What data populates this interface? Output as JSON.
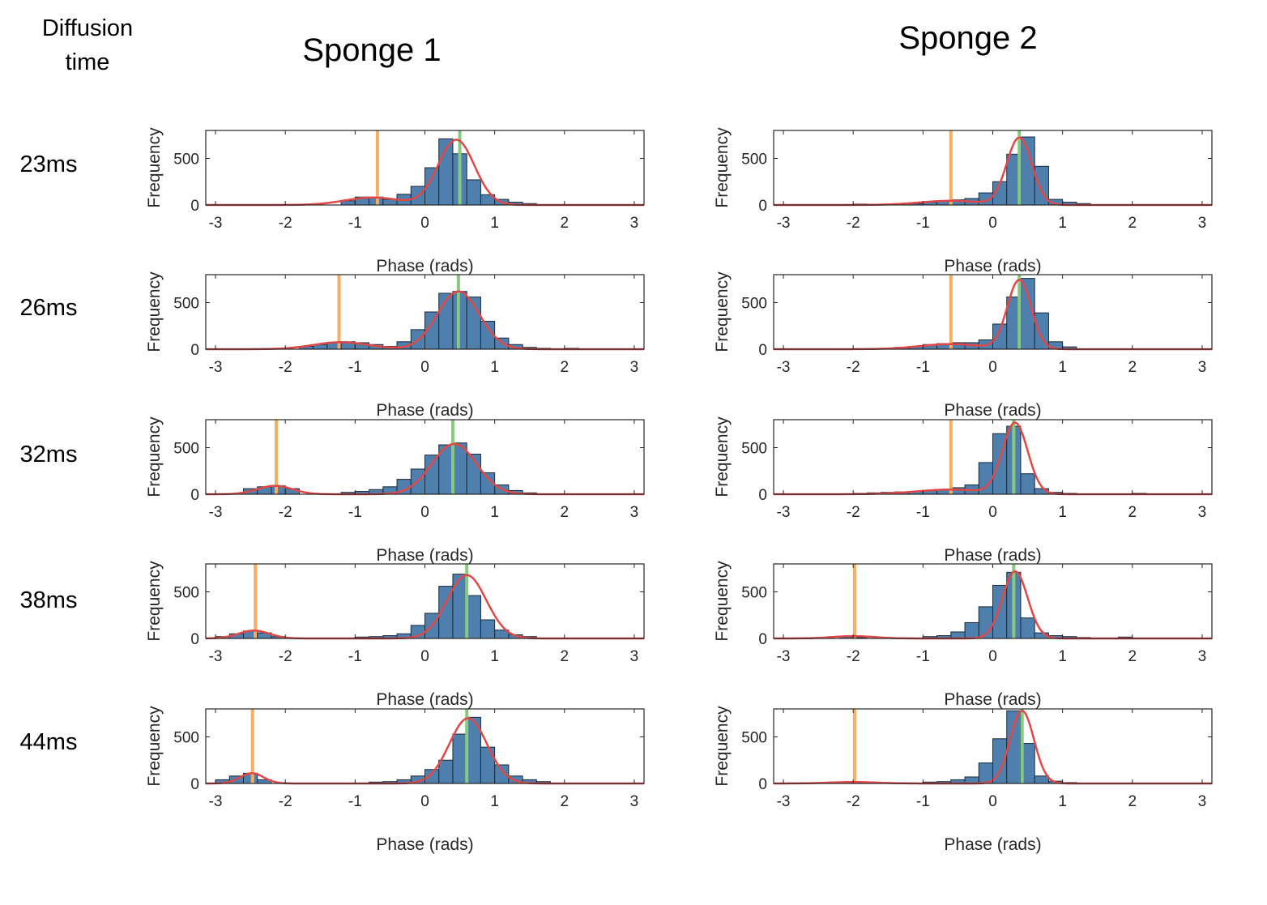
{
  "headers": {
    "row_header_line1": "Diffusion",
    "row_header_line2": "time",
    "columns": [
      "Sponge 1",
      "Sponge 2"
    ],
    "rows": [
      "23ms",
      "26ms",
      "32ms",
      "38ms",
      "44ms"
    ]
  },
  "colors": {
    "bar_fill": "#4e7fad",
    "bar_edge": "#1c2a3a",
    "fit_curve": "#e04848",
    "orange_line": "#f8ad62",
    "green_line": "#86c97f",
    "axis": "#262626"
  },
  "chart_data": [
    {
      "type": "bar",
      "panel": "Sponge 1 / 23ms",
      "xlabel": "Phase (rads)",
      "ylabel": "Frequency",
      "xlim": [
        -3.14,
        3.14
      ],
      "ylim": [
        0,
        800
      ],
      "xticks": [
        -3,
        -2,
        -1,
        0,
        1,
        2,
        3
      ],
      "yticks": [
        0,
        500
      ],
      "bin_width": 0.2,
      "bin_centers": [
        -1.1,
        -0.9,
        -0.7,
        -0.5,
        -0.3,
        -0.1,
        0.1,
        0.3,
        0.5,
        0.7,
        0.9,
        1.1,
        1.3,
        1.5
      ],
      "values": [
        45,
        85,
        85,
        60,
        115,
        200,
        400,
        710,
        550,
        270,
        110,
        60,
        30,
        15
      ],
      "orange_line_x": -0.68,
      "green_line_x": 0.5,
      "fit": [
        {
          "amp": 80,
          "mu": -0.75,
          "sigma": 0.4
        },
        {
          "amp": 700,
          "mu": 0.45,
          "sigma": 0.26
        }
      ]
    },
    {
      "type": "bar",
      "panel": "Sponge 2 / 23ms",
      "xlabel": "Phase (rads)",
      "ylabel": "Frequency",
      "xlim": [
        -3.14,
        3.14
      ],
      "ylim": [
        0,
        800
      ],
      "xticks": [
        -3,
        -2,
        -1,
        0,
        1,
        2,
        3
      ],
      "yticks": [
        0,
        500
      ],
      "bin_width": 0.2,
      "bin_centers": [
        -2.1,
        -1.9,
        -1.1,
        -0.9,
        -0.7,
        -0.5,
        -0.3,
        -0.1,
        0.1,
        0.3,
        0.5,
        0.7,
        0.9,
        1.1,
        1.3
      ],
      "values": [
        5,
        10,
        15,
        30,
        40,
        55,
        70,
        130,
        250,
        545,
        730,
        415,
        60,
        30,
        15
      ],
      "orange_line_x": -0.6,
      "green_line_x": 0.38,
      "fit": [
        {
          "amp": 45,
          "mu": -0.6,
          "sigma": 0.45
        },
        {
          "amp": 720,
          "mu": 0.38,
          "sigma": 0.18
        }
      ]
    },
    {
      "type": "bar",
      "panel": "Sponge 1 / 26ms",
      "xlabel": "Phase (rads)",
      "ylabel": "Frequency",
      "xlim": [
        -3.14,
        3.14
      ],
      "ylim": [
        0,
        800
      ],
      "xticks": [
        -3,
        -2,
        -1,
        0,
        1,
        2,
        3
      ],
      "yticks": [
        0,
        500
      ],
      "bin_width": 0.2,
      "bin_centers": [
        -1.7,
        -1.5,
        -1.3,
        -1.1,
        -0.9,
        -0.7,
        -0.5,
        -0.3,
        -0.1,
        0.1,
        0.3,
        0.5,
        0.7,
        0.9,
        1.1,
        1.3,
        1.5,
        1.7,
        2.1
      ],
      "values": [
        30,
        50,
        75,
        80,
        70,
        50,
        30,
        80,
        210,
        400,
        600,
        620,
        560,
        300,
        120,
        50,
        20,
        10,
        10
      ],
      "orange_line_x": -1.23,
      "green_line_x": 0.48,
      "fit": [
        {
          "amp": 75,
          "mu": -1.2,
          "sigma": 0.4
        },
        {
          "amp": 620,
          "mu": 0.48,
          "sigma": 0.3
        }
      ]
    },
    {
      "type": "bar",
      "panel": "Sponge 2 / 26ms",
      "xlabel": "Phase (rads)",
      "ylabel": "Frequency",
      "xlim": [
        -3.14,
        3.14
      ],
      "ylim": [
        0,
        800
      ],
      "xticks": [
        -3,
        -2,
        -1,
        0,
        1,
        2,
        3
      ],
      "yticks": [
        0,
        500
      ],
      "bin_width": 0.2,
      "bin_centers": [
        -1.3,
        -1.1,
        -0.9,
        -0.7,
        -0.5,
        -0.3,
        -0.1,
        0.1,
        0.3,
        0.5,
        0.7,
        0.9,
        1.1
      ],
      "values": [
        20,
        30,
        50,
        60,
        70,
        70,
        100,
        270,
        560,
        760,
        390,
        80,
        25
      ],
      "orange_line_x": -0.6,
      "green_line_x": 0.38,
      "fit": [
        {
          "amp": 55,
          "mu": -0.6,
          "sigma": 0.45
        },
        {
          "amp": 740,
          "mu": 0.38,
          "sigma": 0.17
        }
      ]
    },
    {
      "type": "bar",
      "panel": "Sponge 1 / 32ms",
      "xlabel": "Phase (rads)",
      "ylabel": "Frequency",
      "xlim": [
        -3.14,
        3.14
      ],
      "ylim": [
        0,
        800
      ],
      "xticks": [
        -3,
        -2,
        -1,
        0,
        1,
        2,
        3
      ],
      "yticks": [
        0,
        500
      ],
      "bin_width": 0.2,
      "bin_centers": [
        -2.5,
        -2.3,
        -2.1,
        -1.9,
        -1.1,
        -0.9,
        -0.7,
        -0.5,
        -0.3,
        -0.1,
        0.1,
        0.3,
        0.5,
        0.7,
        0.9,
        1.1,
        1.3,
        1.5
      ],
      "values": [
        60,
        80,
        90,
        60,
        20,
        30,
        50,
        80,
        160,
        270,
        420,
        530,
        550,
        430,
        230,
        100,
        40,
        15
      ],
      "orange_line_x": -2.13,
      "green_line_x": 0.4,
      "fit": [
        {
          "amp": 90,
          "mu": -2.15,
          "sigma": 0.25
        },
        {
          "amp": 540,
          "mu": 0.42,
          "sigma": 0.32
        }
      ]
    },
    {
      "type": "bar",
      "panel": "Sponge 2 / 32ms",
      "xlabel": "Phase (rads)",
      "ylabel": "Frequency",
      "xlim": [
        -3.14,
        3.14
      ],
      "ylim": [
        0,
        800
      ],
      "xticks": [
        -3,
        -2,
        -1,
        0,
        1,
        2,
        3
      ],
      "yticks": [
        0,
        500
      ],
      "bin_width": 0.2,
      "bin_centers": [
        -1.9,
        -1.7,
        -1.5,
        -1.3,
        -1.1,
        -0.9,
        -0.7,
        -0.5,
        -0.3,
        -0.1,
        0.1,
        0.3,
        0.5,
        0.7,
        0.9,
        1.1,
        2.1
      ],
      "values": [
        10,
        15,
        20,
        25,
        30,
        40,
        50,
        70,
        100,
        340,
        650,
        730,
        220,
        60,
        20,
        10,
        10
      ],
      "orange_line_x": -0.6,
      "green_line_x": 0.3,
      "fit": [
        {
          "amp": 50,
          "mu": -0.6,
          "sigma": 0.5
        },
        {
          "amp": 760,
          "mu": 0.32,
          "sigma": 0.18
        }
      ]
    },
    {
      "type": "bar",
      "panel": "Sponge 1 / 38ms",
      "xlabel": "Phase (rads)",
      "ylabel": "Frequency",
      "xlim": [
        -3.14,
        3.14
      ],
      "ylim": [
        0,
        800
      ],
      "xticks": [
        -3,
        -2,
        -1,
        0,
        1,
        2,
        3
      ],
      "yticks": [
        0,
        500
      ],
      "bin_width": 0.2,
      "bin_centers": [
        -2.9,
        -2.7,
        -2.5,
        -2.3,
        -2.1,
        -0.9,
        -0.7,
        -0.5,
        -0.3,
        -0.1,
        0.1,
        0.3,
        0.5,
        0.7,
        0.9,
        1.1,
        1.3,
        1.5
      ],
      "values": [
        20,
        50,
        80,
        60,
        20,
        15,
        20,
        30,
        50,
        140,
        270,
        560,
        690,
        460,
        200,
        90,
        40,
        20
      ],
      "orange_line_x": -2.43,
      "green_line_x": 0.6,
      "fit": [
        {
          "amp": 85,
          "mu": -2.45,
          "sigma": 0.22
        },
        {
          "amp": 680,
          "mu": 0.6,
          "sigma": 0.28
        }
      ]
    },
    {
      "type": "bar",
      "panel": "Sponge 2 / 38ms",
      "xlabel": "Phase (rads)",
      "ylabel": "Frequency",
      "xlim": [
        -3.14,
        3.14
      ],
      "ylim": [
        0,
        800
      ],
      "xticks": [
        -3,
        -2,
        -1,
        0,
        1,
        2,
        3
      ],
      "yticks": [
        0,
        500
      ],
      "bin_width": 0.2,
      "bin_centers": [
        -2.1,
        -1.9,
        -0.9,
        -0.7,
        -0.5,
        -0.3,
        -0.1,
        0.1,
        0.3,
        0.5,
        0.7,
        0.9,
        1.1,
        1.3,
        1.9
      ],
      "values": [
        15,
        10,
        20,
        30,
        70,
        170,
        340,
        570,
        710,
        220,
        60,
        30,
        20,
        10,
        15
      ],
      "orange_line_x": -1.98,
      "green_line_x": 0.3,
      "fit": [
        {
          "amp": 25,
          "mu": -2.0,
          "sigma": 0.3
        },
        {
          "amp": 720,
          "mu": 0.32,
          "sigma": 0.18
        }
      ]
    },
    {
      "type": "bar",
      "panel": "Sponge 1 / 44ms",
      "xlabel": "Phase (rads)",
      "ylabel": "Frequency",
      "xlim": [
        -3.14,
        3.14
      ],
      "ylim": [
        0,
        800
      ],
      "xticks": [
        -3,
        -2,
        -1,
        0,
        1,
        2,
        3
      ],
      "yticks": [
        0,
        500
      ],
      "bin_width": 0.2,
      "bin_centers": [
        -2.9,
        -2.7,
        -2.5,
        -2.3,
        -0.7,
        -0.5,
        -0.3,
        -0.1,
        0.1,
        0.3,
        0.5,
        0.7,
        0.9,
        1.1,
        1.3,
        1.5,
        1.7
      ],
      "values": [
        40,
        80,
        110,
        40,
        15,
        20,
        40,
        80,
        150,
        250,
        530,
        710,
        390,
        200,
        80,
        40,
        20
      ],
      "orange_line_x": -2.47,
      "green_line_x": 0.6,
      "fit": [
        {
          "amp": 110,
          "mu": -2.48,
          "sigma": 0.17
        },
        {
          "amp": 700,
          "mu": 0.62,
          "sigma": 0.27
        }
      ]
    },
    {
      "type": "bar",
      "panel": "Sponge 2 / 44ms",
      "xlabel": "Phase (rads)",
      "ylabel": "Frequency",
      "xlim": [
        -3.14,
        3.14
      ],
      "ylim": [
        0,
        800
      ],
      "xticks": [
        -3,
        -2,
        -1,
        0,
        1,
        2,
        3
      ],
      "yticks": [
        0,
        500
      ],
      "bin_width": 0.2,
      "bin_centers": [
        -2.1,
        -1.9,
        -0.9,
        -0.7,
        -0.5,
        -0.3,
        -0.1,
        0.1,
        0.3,
        0.5,
        0.7,
        0.9,
        1.1
      ],
      "values": [
        10,
        10,
        15,
        20,
        40,
        70,
        220,
        480,
        780,
        430,
        80,
        25,
        10
      ],
      "orange_line_x": -1.98,
      "green_line_x": 0.42,
      "fit": [
        {
          "amp": 15,
          "mu": -2.0,
          "sigma": 0.35
        },
        {
          "amp": 780,
          "mu": 0.42,
          "sigma": 0.17
        }
      ]
    }
  ]
}
